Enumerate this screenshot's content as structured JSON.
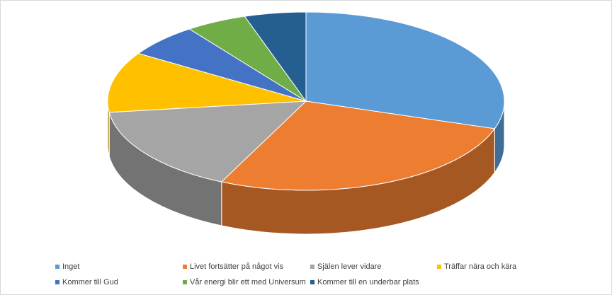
{
  "chart_data": {
    "type": "pie3d",
    "categories": [
      "Inget",
      "Livet fortsätter på något vis",
      "Själen lever vidare",
      "Träffar nära och kära",
      "Kommer till Gud",
      "Vår energi blir ett med Universum",
      "Kommer till en underbar plats"
    ],
    "values": [
      30,
      27,
      16,
      11,
      6,
      5,
      5
    ],
    "colors": [
      "#5b9bd5",
      "#ed7d31",
      "#a5a5a5",
      "#ffc000",
      "#4472c4",
      "#70ad47",
      "#255e91"
    ],
    "legend": "bottom"
  }
}
